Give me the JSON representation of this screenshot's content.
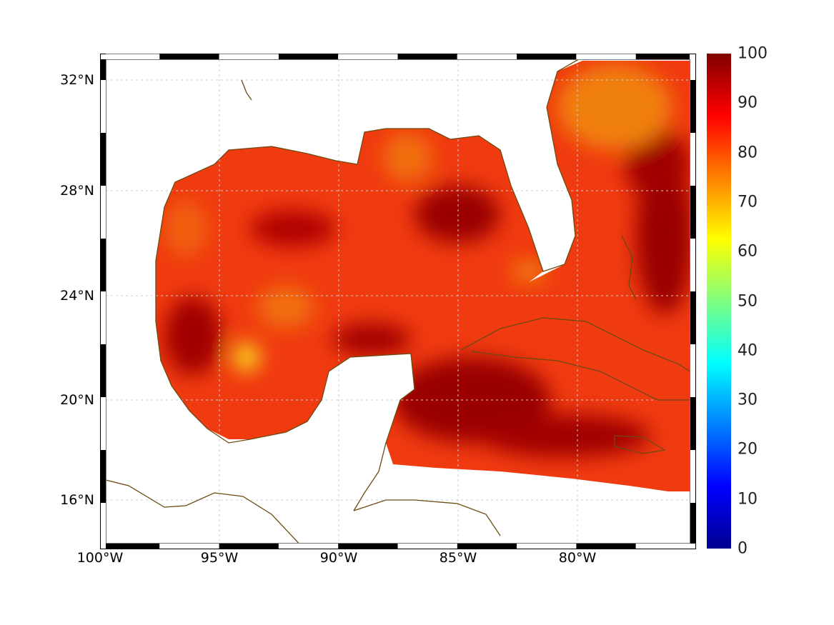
{
  "map": {
    "lat_labels": [
      "32°N",
      "28°N",
      "24°N",
      "20°N",
      "16°N"
    ],
    "lat_values": [
      32,
      28,
      24,
      20,
      16
    ],
    "lon_labels": [
      "100°W",
      "95°W",
      "90°W",
      "85°W",
      "80°W"
    ],
    "lon_values": [
      -100,
      -95,
      -90,
      -85,
      -80
    ],
    "extent": {
      "lon_min": -100,
      "lon_max": -75,
      "lat_min": 14.3,
      "lat_max": 33
    }
  },
  "colorbar": {
    "labels": [
      "0",
      "10",
      "20",
      "30",
      "40",
      "50",
      "60",
      "70",
      "80",
      "90",
      "100"
    ],
    "min": 0,
    "max": 100,
    "colormap": "jet"
  },
  "colors": {
    "coastline": "#6b4a10",
    "ocean_base": "#f03a10",
    "high": "#9a0000",
    "mid": "#f07010"
  }
}
